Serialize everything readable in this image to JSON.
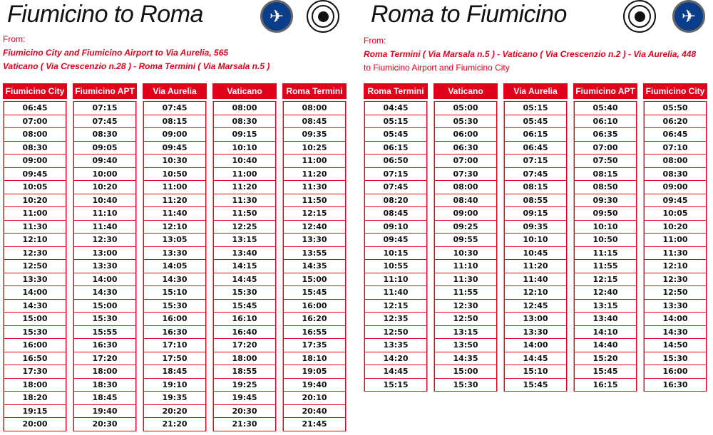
{
  "left": {
    "title": "Fiumicino to Roma",
    "from_label": "From:",
    "route_line1": "Fiumicino City and Fiumicino Airport to Via Aurelia, 565",
    "route_line2": "Vaticano ( Via Crescenzio n.28 ) - Roma Termini ( Via Marsala n.5 )",
    "icons": [
      "airplane-icon",
      "target-icon"
    ],
    "columns": [
      {
        "header": "Fiumicino City",
        "times": [
          "06:45",
          "07:00",
          "08:00",
          "08:30",
          "09:00",
          "09:45",
          "10:05",
          "10:20",
          "11:00",
          "11:30",
          "12:10",
          "12:30",
          "12:50",
          "13:30",
          "14:00",
          "14:30",
          "15:00",
          "15:30",
          "16:00",
          "16:50",
          "17:30",
          "18:00",
          "18:20",
          "19:15",
          "20:00"
        ]
      },
      {
        "header": "Fiumicino APT",
        "times": [
          "07:15",
          "07:45",
          "08:30",
          "09:05",
          "09:40",
          "10:00",
          "10:20",
          "10:40",
          "11:10",
          "11:40",
          "12:30",
          "13:00",
          "13:30",
          "14:00",
          "14:30",
          "15:00",
          "15:30",
          "15:55",
          "16:30",
          "17:20",
          "18:00",
          "18:30",
          "18:45",
          "19:40",
          "20:30"
        ]
      },
      {
        "header": "Via Aurelia",
        "times": [
          "07:45",
          "08:15",
          "09:00",
          "09:45",
          "10:30",
          "10:50",
          "11:00",
          "11:20",
          "11:40",
          "12:10",
          "13:05",
          "13:30",
          "14:05",
          "14:30",
          "15:10",
          "15:30",
          "16:00",
          "16:30",
          "17:10",
          "17:50",
          "18:45",
          "19:10",
          "19:35",
          "20:20",
          "21:20"
        ]
      },
      {
        "header": "Vaticano",
        "times": [
          "08:00",
          "08:30",
          "09:15",
          "10:10",
          "10:40",
          "11:00",
          "11:20",
          "11:30",
          "11:50",
          "12:25",
          "13:15",
          "13:40",
          "14:15",
          "14:45",
          "15:30",
          "15:45",
          "16:10",
          "16:40",
          "17:20",
          "18:00",
          "18:55",
          "19:25",
          "19:45",
          "20:30",
          "21:30"
        ]
      },
      {
        "header": "Roma Termini",
        "times": [
          "08:00",
          "08:45",
          "09:35",
          "10:25",
          "11:00",
          "11:20",
          "11:30",
          "11:50",
          "12:15",
          "12:40",
          "13:30",
          "13:55",
          "14:35",
          "15:00",
          "15:45",
          "16:00",
          "16:20",
          "16:55",
          "17:35",
          "18:10",
          "19:05",
          "19:40",
          "20:10",
          "20:40",
          "21:45"
        ]
      }
    ]
  },
  "right": {
    "title": "Roma to Fiumicino",
    "from_label": "From:",
    "route_line1": "Roma Termini ( Via Marsala n.5 ) - Vaticano ( Via Crescenzio n.2 ) - Via Aurelia, 448",
    "route_line2": "to Fiumicino Airport and Fiumicino City",
    "icons": [
      "target-icon",
      "airplane-icon"
    ],
    "columns": [
      {
        "header": "Roma Termini",
        "times": [
          "04:45",
          "05:15",
          "05:45",
          "06:15",
          "06:50",
          "07:15",
          "07:45",
          "08:20",
          "08:45",
          "09:10",
          "09:45",
          "10:15",
          "10:55",
          "11:10",
          "11:40",
          "12:15",
          "12:35",
          "12:50",
          "13:35",
          "14:20",
          "14:45",
          "15:15"
        ]
      },
      {
        "header": "Vaticano",
        "times": [
          "05:00",
          "05:30",
          "06:00",
          "06:30",
          "07:00",
          "07:30",
          "08:00",
          "08:40",
          "09:00",
          "09:25",
          "09:55",
          "10:30",
          "11:10",
          "11:30",
          "11:55",
          "12:30",
          "12:50",
          "13:15",
          "13:50",
          "14:35",
          "15:00",
          "15:30"
        ]
      },
      {
        "header": "Via Aurelia",
        "times": [
          "05:15",
          "05:45",
          "06:15",
          "06:45",
          "07:15",
          "07:45",
          "08:15",
          "08:55",
          "09:15",
          "09:35",
          "10:10",
          "10:45",
          "11:20",
          "11:40",
          "12:10",
          "12:45",
          "13:00",
          "13:30",
          "14:00",
          "14:45",
          "15:10",
          "15:45"
        ]
      },
      {
        "header": "Fiumicino APT",
        "times": [
          "05:40",
          "06:10",
          "06:35",
          "07:00",
          "07:50",
          "08:15",
          "08:50",
          "09:30",
          "09:50",
          "10:10",
          "10:50",
          "11:15",
          "11:55",
          "12:15",
          "12:40",
          "13:15",
          "13:40",
          "14:10",
          "14:40",
          "15:20",
          "15:45",
          "16:15"
        ]
      },
      {
        "header": "Fiumicino City",
        "times": [
          "05:50",
          "06:20",
          "06:45",
          "07:10",
          "08:00",
          "08:30",
          "09:00",
          "09:45",
          "10:05",
          "10:20",
          "11:00",
          "11:30",
          "12:10",
          "12:30",
          "12:50",
          "13:30",
          "14:00",
          "14:30",
          "14:50",
          "15:30",
          "16:00",
          "16:30"
        ]
      }
    ]
  },
  "colors": {
    "accent": "#e0001b",
    "plane_badge": "#0a3d8a",
    "text": "#111111"
  }
}
